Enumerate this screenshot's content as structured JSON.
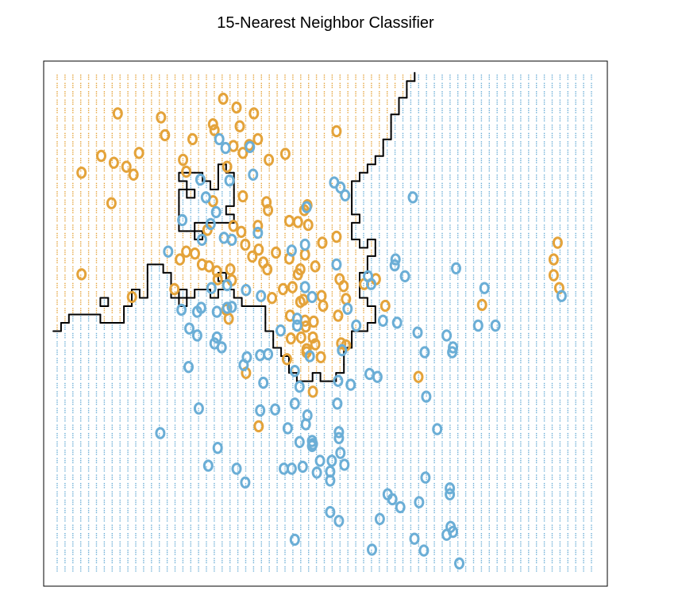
{
  "chart_data": {
    "type": "scatter",
    "title": "15-Nearest Neighbor Classifier",
    "xlabel": "",
    "ylabel": "",
    "xlim": [
      -2.6,
      4.2
    ],
    "ylim": [
      -2.1,
      2.9
    ],
    "axes_visible": false,
    "grid": false,
    "legend": "none",
    "point_marker": "o",
    "colors": {
      "class_0": "#6BAED6",
      "class_1": "#E4A33A",
      "boundary": "#000000",
      "frame": "#000000"
    },
    "background_grid": {
      "nx": 69,
      "ny": 60,
      "dot_color_class_0": "#6BAED6",
      "dot_color_class_1": "#E4A33A"
    },
    "series": [
      {
        "class": 1,
        "points": [
          [
            -0.5,
            2.68
          ],
          [
            -1.84,
            2.53
          ],
          [
            -0.33,
            2.59
          ],
          [
            -0.11,
            2.53
          ],
          [
            -1.29,
            2.49
          ],
          [
            -0.63,
            2.42
          ],
          [
            -0.29,
            2.4
          ],
          [
            -1.24,
            2.31
          ],
          [
            -0.61,
            2.36
          ],
          [
            -0.89,
            2.27
          ],
          [
            -0.06,
            2.27
          ],
          [
            0.94,
            2.35
          ],
          [
            -0.37,
            2.2
          ],
          [
            -0.17,
            2.21
          ],
          [
            -0.25,
            2.13
          ],
          [
            -2.05,
            2.1
          ],
          [
            -1.57,
            2.13
          ],
          [
            0.29,
            2.12
          ],
          [
            0.08,
            2.06
          ],
          [
            -1.01,
            2.06
          ],
          [
            -1.89,
            2.03
          ],
          [
            -1.73,
            1.99
          ],
          [
            -0.45,
            1.99
          ],
          [
            -0.97,
            1.94
          ],
          [
            -2.3,
            1.93
          ],
          [
            -1.64,
            1.91
          ],
          [
            -0.25,
            1.69
          ],
          [
            -0.63,
            1.64
          ],
          [
            0.05,
            1.63
          ],
          [
            0.57,
            1.6
          ],
          [
            -1.92,
            1.62
          ],
          [
            0.07,
            1.55
          ],
          [
            0.53,
            1.55
          ],
          [
            0.34,
            1.44
          ],
          [
            0.45,
            1.43
          ],
          [
            -0.37,
            1.39
          ],
          [
            0.58,
            1.4
          ],
          [
            -0.06,
            1.39
          ],
          [
            -0.27,
            1.33
          ],
          [
            -0.7,
            1.35
          ],
          [
            -0.86,
            1.11
          ],
          [
            0.54,
            1.1
          ],
          [
            0.76,
            1.22
          ],
          [
            0.94,
            1.28
          ],
          [
            -0.22,
            1.2
          ],
          [
            -0.05,
            1.15
          ],
          [
            0.17,
            1.12
          ],
          [
            0.34,
            1.06
          ],
          [
            0.45,
            0.9
          ],
          [
            0.48,
            0.95
          ],
          [
            -0.97,
            1.13
          ],
          [
            -1.05,
            1.05
          ],
          [
            -0.77,
            1.0
          ],
          [
            -0.68,
            0.98
          ],
          [
            -0.58,
            0.93
          ],
          [
            -0.41,
            0.95
          ],
          [
            -0.57,
            0.85
          ],
          [
            -0.39,
            0.84
          ],
          [
            -1.12,
            0.75
          ],
          [
            -0.13,
            1.08
          ],
          [
            0.01,
            1.02
          ],
          [
            0.06,
            0.95
          ],
          [
            0.38,
            0.77
          ],
          [
            0.48,
            0.62
          ],
          [
            0.52,
            0.64
          ],
          [
            0.26,
            0.75
          ],
          [
            0.67,
            0.98
          ],
          [
            0.75,
            0.68
          ],
          [
            0.12,
            0.66
          ],
          [
            -2.3,
            0.9
          ],
          [
            -1.66,
            0.67
          ],
          [
            0.35,
            0.48
          ],
          [
            0.49,
            0.26
          ],
          [
            0.64,
            0.26
          ],
          [
            0.56,
            0.14
          ],
          [
            0.67,
            0.19
          ],
          [
            0.74,
            0.06
          ],
          [
            0.55,
            0.37
          ],
          [
            0.54,
            0.43
          ],
          [
            0.65,
            0.42
          ],
          [
            0.77,
            0.58
          ],
          [
            1.03,
            0.78
          ],
          [
            0.96,
            0.48
          ],
          [
            1.06,
            0.18
          ],
          [
            1.0,
            0.2
          ],
          [
            1.06,
            0.65
          ],
          [
            -0.43,
            0.45
          ],
          [
            0.36,
            0.25
          ],
          [
            -0.46,
            0.54
          ],
          [
            0.31,
            0.04
          ],
          [
            0.56,
            0.11
          ],
          [
            3.75,
            1.22
          ],
          [
            3.7,
            1.05
          ],
          [
            3.7,
            0.89
          ],
          [
            3.77,
            0.76
          ],
          [
            2.79,
            0.59
          ],
          [
            1.98,
            -0.14
          ],
          [
            1.44,
            0.85
          ],
          [
            0.98,
            0.85
          ],
          [
            1.29,
            0.8
          ],
          [
            1.56,
            0.58
          ],
          [
            0.64,
            -0.29
          ],
          [
            -0.21,
            -0.1
          ],
          [
            -0.05,
            -0.64
          ]
        ]
      },
      {
        "class": 0,
        "points": [
          [
            -0.55,
            2.27
          ],
          [
            -0.47,
            2.18
          ],
          [
            -0.16,
            2.19
          ],
          [
            -0.79,
            1.86
          ],
          [
            -0.42,
            1.85
          ],
          [
            0.91,
            1.83
          ],
          [
            -0.12,
            1.91
          ],
          [
            0.99,
            1.78
          ],
          [
            1.05,
            1.7
          ],
          [
            1.91,
            1.68
          ],
          [
            0.56,
            1.58
          ],
          [
            -0.72,
            1.68
          ],
          [
            -0.59,
            1.53
          ],
          [
            -1.02,
            1.45
          ],
          [
            -0.66,
            1.41
          ],
          [
            -0.77,
            1.25
          ],
          [
            -1.2,
            1.13
          ],
          [
            -0.49,
            1.27
          ],
          [
            -0.39,
            1.25
          ],
          [
            -0.06,
            1.32
          ],
          [
            0.37,
            1.14
          ],
          [
            0.54,
            1.2
          ],
          [
            0.94,
            1.0
          ],
          [
            1.38,
            0.8
          ],
          [
            1.81,
            0.88
          ],
          [
            1.68,
            0.99
          ],
          [
            1.34,
            0.88
          ],
          [
            1.69,
            1.05
          ],
          [
            2.46,
            0.96
          ],
          [
            -0.65,
            0.76
          ],
          [
            -0.45,
            0.79
          ],
          [
            -0.21,
            0.74
          ],
          [
            -0.02,
            0.68
          ],
          [
            -0.45,
            0.56
          ],
          [
            -0.39,
            0.57
          ],
          [
            -0.58,
            0.52
          ],
          [
            -0.78,
            0.56
          ],
          [
            -0.83,
            0.52
          ],
          [
            -1.03,
            0.54
          ],
          [
            -0.93,
            0.35
          ],
          [
            -0.58,
            0.26
          ],
          [
            -0.83,
            0.28
          ],
          [
            -0.61,
            0.2
          ],
          [
            0.44,
            0.38
          ],
          [
            0.44,
            0.45
          ],
          [
            0.07,
            0.09
          ],
          [
            0.23,
            0.33
          ],
          [
            0.54,
            0.77
          ],
          [
            0.63,
            0.67
          ],
          [
            1.08,
            0.55
          ],
          [
            1.19,
            0.38
          ],
          [
            1.53,
            0.43
          ],
          [
            1.71,
            0.41
          ],
          [
            1.97,
            0.31
          ],
          [
            2.34,
            0.28
          ],
          [
            2.42,
            0.16
          ],
          [
            2.82,
            0.76
          ],
          [
            3.8,
            0.68
          ],
          [
            2.96,
            0.38
          ],
          [
            -0.94,
            -0.04
          ],
          [
            -0.24,
            -0.02
          ],
          [
            -0.2,
            0.06
          ],
          [
            -0.03,
            0.08
          ],
          [
            0.41,
            -0.08
          ],
          [
            0.01,
            -0.2
          ],
          [
            -0.03,
            -0.48
          ],
          [
            0.16,
            -0.47
          ],
          [
            0.47,
            -0.24
          ],
          [
            0.41,
            -0.41
          ],
          [
            0.57,
            -0.53
          ],
          [
            0.55,
            -0.62
          ],
          [
            0.63,
            -0.79
          ],
          [
            0.97,
            -0.7
          ],
          [
            0.64,
            -0.82
          ],
          [
            0.97,
            -0.76
          ],
          [
            0.32,
            -0.66
          ],
          [
            0.47,
            -0.8
          ],
          [
            0.63,
            -0.84
          ],
          [
            0.86,
            -1.1
          ],
          [
            0.99,
            -0.91
          ],
          [
            0.88,
            -0.99
          ],
          [
            0.86,
            -1.19
          ],
          [
            0.86,
            -1.51
          ],
          [
            0.97,
            -1.6
          ],
          [
            0.41,
            -1.79
          ],
          [
            1.39,
            -1.89
          ],
          [
            1.59,
            -1.33
          ],
          [
            1.65,
            -1.38
          ],
          [
            1.93,
            -1.78
          ],
          [
            2.05,
            -1.9
          ],
          [
            2.34,
            -1.74
          ],
          [
            2.42,
            -1.71
          ],
          [
            2.39,
            -1.66
          ],
          [
            2.5,
            -2.03
          ],
          [
            2.38,
            -1.33
          ],
          [
            2.38,
            -1.27
          ],
          [
            2.07,
            -1.16
          ],
          [
            1.99,
            -1.41
          ],
          [
            1.75,
            -1.46
          ],
          [
            1.49,
            -1.58
          ],
          [
            1.04,
            -1.03
          ],
          [
            0.51,
            -1.05
          ],
          [
            0.37,
            -1.07
          ],
          [
            0.73,
            -0.99
          ],
          [
            0.69,
            -1.11
          ],
          [
            0.27,
            -1.07
          ],
          [
            -0.69,
            -1.04
          ],
          [
            -0.33,
            -1.07
          ],
          [
            -0.22,
            -1.21
          ],
          [
            -0.57,
            -0.86
          ],
          [
            -0.81,
            -0.46
          ],
          [
            -1.3,
            -0.71
          ],
          [
            -0.52,
            0.16
          ],
          [
            0.6,
            0.07
          ],
          [
            1.01,
            0.13
          ],
          [
            1.46,
            -0.14
          ],
          [
            2.06,
            0.11
          ],
          [
            2.41,
            0.11
          ],
          [
            2.08,
            -0.34
          ],
          [
            2.22,
            -0.67
          ],
          [
            2.74,
            0.38
          ],
          [
            0.95,
            -0.41
          ],
          [
            1.36,
            -0.11
          ],
          [
            1.12,
            -0.22
          ],
          [
            0.96,
            -0.18
          ]
        ]
      }
    ]
  }
}
